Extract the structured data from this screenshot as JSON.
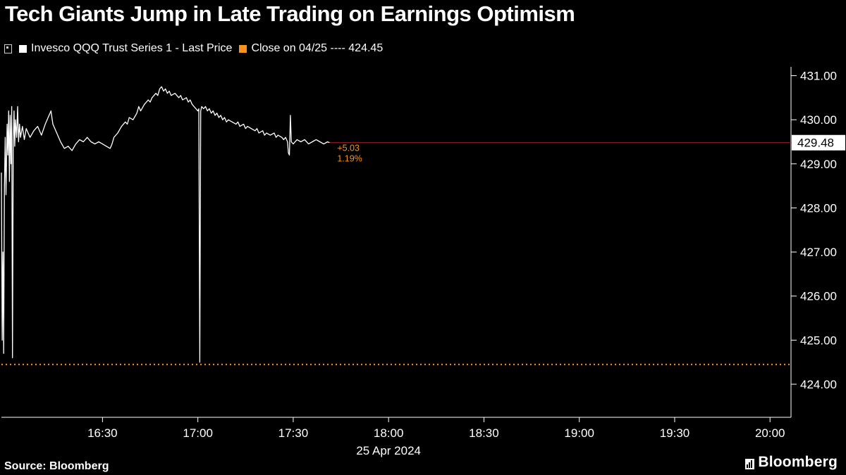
{
  "title": "Tech Giants Jump in Late Trading on Earnings Optimism",
  "legend": {
    "series_label": "Invesco QQQ Trust Series 1 - Last Price",
    "close_label": "Close on 04/25 ---- 424.45",
    "series_color": "#ffffff",
    "close_color": "#f7941d"
  },
  "footer": {
    "source": "Source: Bloomberg",
    "brand": "Bloomberg"
  },
  "chart_data": {
    "type": "line",
    "title": "Tech Giants Jump in Late Trading on Earnings Optimism",
    "x_axis_date": "25 Apr 2024",
    "date_t": 18.0,
    "xlim": [
      15.97,
      20.11
    ],
    "ylim": [
      423.25,
      431.2
    ],
    "grid": false,
    "legend_position": "top-left",
    "y_ticks": [
      431,
      430,
      429,
      428,
      427,
      426,
      425,
      424
    ],
    "x_ticks": [
      {
        "t": 16.5,
        "label": "16:30"
      },
      {
        "t": 17.0,
        "label": "17:00"
      },
      {
        "t": 17.5,
        "label": "17:30"
      },
      {
        "t": 18.0,
        "label": "18:00"
      },
      {
        "t": 18.5,
        "label": "18:30"
      },
      {
        "t": 19.0,
        "label": "19:00"
      },
      {
        "t": 19.5,
        "label": "19:30"
      },
      {
        "t": 20.0,
        "label": "20:00"
      }
    ],
    "close_line": {
      "label": "Close on 04/25",
      "value": 424.45,
      "color": "#f7941d"
    },
    "last_price": {
      "value": 429.48,
      "label": "429.48",
      "change": "+5.03",
      "change_pct": "1.19%",
      "line_color": "#b22222",
      "badge_bg": "#ffffff",
      "badge_fg": "#000000"
    },
    "series": [
      {
        "name": "Invesco QQQ Trust Series 1 - Last Price",
        "color": "#ffffff",
        "points": [
          [
            15.97,
            428.8
          ],
          [
            15.974,
            425.0
          ],
          [
            15.978,
            427.0
          ],
          [
            15.982,
            424.7
          ],
          [
            15.986,
            428.5
          ],
          [
            15.99,
            429.6
          ],
          [
            15.994,
            428.3
          ],
          [
            16.0,
            429.9
          ],
          [
            16.004,
            429.2
          ],
          [
            16.008,
            430.2
          ],
          [
            16.012,
            428.6
          ],
          [
            16.016,
            430.1
          ],
          [
            16.02,
            429.0
          ],
          [
            16.024,
            430.3
          ],
          [
            16.028,
            424.6
          ],
          [
            16.032,
            429.5
          ],
          [
            16.036,
            430.2
          ],
          [
            16.04,
            429.4
          ],
          [
            16.044,
            430.0
          ],
          [
            16.05,
            429.6
          ],
          [
            16.055,
            430.3
          ],
          [
            16.06,
            429.5
          ],
          [
            16.065,
            429.9
          ],
          [
            16.07,
            429.6
          ],
          [
            16.08,
            429.85
          ],
          [
            16.09,
            429.55
          ],
          [
            16.1,
            429.8
          ],
          [
            16.12,
            429.6
          ],
          [
            16.14,
            429.75
          ],
          [
            16.16,
            429.85
          ],
          [
            16.18,
            429.65
          ],
          [
            16.2,
            429.9
          ],
          [
            16.22,
            430.1
          ],
          [
            16.23,
            430.2
          ],
          [
            16.24,
            429.9
          ],
          [
            16.26,
            429.7
          ],
          [
            16.28,
            429.5
          ],
          [
            16.3,
            429.35
          ],
          [
            16.32,
            429.4
          ],
          [
            16.34,
            429.3
          ],
          [
            16.36,
            429.45
          ],
          [
            16.38,
            429.55
          ],
          [
            16.4,
            429.5
          ],
          [
            16.42,
            429.6
          ],
          [
            16.44,
            429.5
          ],
          [
            16.46,
            429.45
          ],
          [
            16.48,
            429.5
          ],
          [
            16.5,
            429.45
          ],
          [
            16.52,
            429.4
          ],
          [
            16.54,
            429.35
          ],
          [
            16.55,
            429.45
          ],
          [
            16.56,
            429.6
          ],
          [
            16.58,
            429.7
          ],
          [
            16.6,
            429.85
          ],
          [
            16.62,
            429.95
          ],
          [
            16.63,
            429.9
          ],
          [
            16.64,
            430.05
          ],
          [
            16.66,
            430.0
          ],
          [
            16.68,
            430.15
          ],
          [
            16.69,
            430.3
          ],
          [
            16.7,
            430.2
          ],
          [
            16.72,
            430.35
          ],
          [
            16.74,
            430.45
          ],
          [
            16.75,
            430.4
          ],
          [
            16.76,
            430.5
          ],
          [
            16.78,
            430.6
          ],
          [
            16.79,
            430.55
          ],
          [
            16.8,
            430.7
          ],
          [
            16.81,
            430.75
          ],
          [
            16.82,
            430.65
          ],
          [
            16.83,
            430.7
          ],
          [
            16.84,
            430.6
          ],
          [
            16.85,
            430.65
          ],
          [
            16.86,
            430.55
          ],
          [
            16.88,
            430.6
          ],
          [
            16.9,
            430.5
          ],
          [
            16.91,
            430.55
          ],
          [
            16.92,
            430.45
          ],
          [
            16.94,
            430.5
          ],
          [
            16.95,
            430.4
          ],
          [
            16.96,
            430.45
          ],
          [
            16.97,
            430.35
          ],
          [
            16.98,
            430.3
          ],
          [
            16.99,
            430.25
          ],
          [
            17.0,
            430.2
          ],
          [
            17.005,
            430.25
          ],
          [
            17.01,
            424.5
          ],
          [
            17.015,
            430.2
          ],
          [
            17.02,
            430.3
          ],
          [
            17.03,
            430.25
          ],
          [
            17.04,
            430.3
          ],
          [
            17.05,
            430.2
          ],
          [
            17.06,
            430.25
          ],
          [
            17.07,
            430.15
          ],
          [
            17.08,
            430.2
          ],
          [
            17.09,
            430.1
          ],
          [
            17.1,
            430.15
          ],
          [
            17.11,
            430.05
          ],
          [
            17.12,
            430.1
          ],
          [
            17.13,
            430.0
          ],
          [
            17.14,
            430.05
          ],
          [
            17.15,
            429.95
          ],
          [
            17.16,
            430.0
          ],
          [
            17.18,
            429.95
          ],
          [
            17.2,
            429.9
          ],
          [
            17.21,
            429.95
          ],
          [
            17.22,
            429.85
          ],
          [
            17.24,
            429.9
          ],
          [
            17.25,
            429.8
          ],
          [
            17.26,
            429.85
          ],
          [
            17.28,
            429.8
          ],
          [
            17.3,
            429.75
          ],
          [
            17.31,
            429.8
          ],
          [
            17.32,
            429.7
          ],
          [
            17.34,
            429.75
          ],
          [
            17.35,
            429.65
          ],
          [
            17.36,
            429.7
          ],
          [
            17.38,
            429.65
          ],
          [
            17.4,
            429.7
          ],
          [
            17.41,
            429.6
          ],
          [
            17.42,
            429.65
          ],
          [
            17.44,
            429.6
          ],
          [
            17.45,
            429.55
          ],
          [
            17.46,
            429.6
          ],
          [
            17.47,
            429.5
          ],
          [
            17.475,
            429.25
          ],
          [
            17.48,
            429.2
          ],
          [
            17.485,
            430.1
          ],
          [
            17.49,
            429.5
          ],
          [
            17.5,
            429.45
          ],
          [
            17.52,
            429.55
          ],
          [
            17.54,
            429.5
          ],
          [
            17.56,
            429.55
          ],
          [
            17.58,
            429.45
          ],
          [
            17.6,
            429.5
          ],
          [
            17.62,
            429.55
          ],
          [
            17.64,
            429.5
          ],
          [
            17.66,
            429.45
          ],
          [
            17.68,
            429.5
          ],
          [
            17.69,
            429.48
          ]
        ]
      }
    ]
  }
}
